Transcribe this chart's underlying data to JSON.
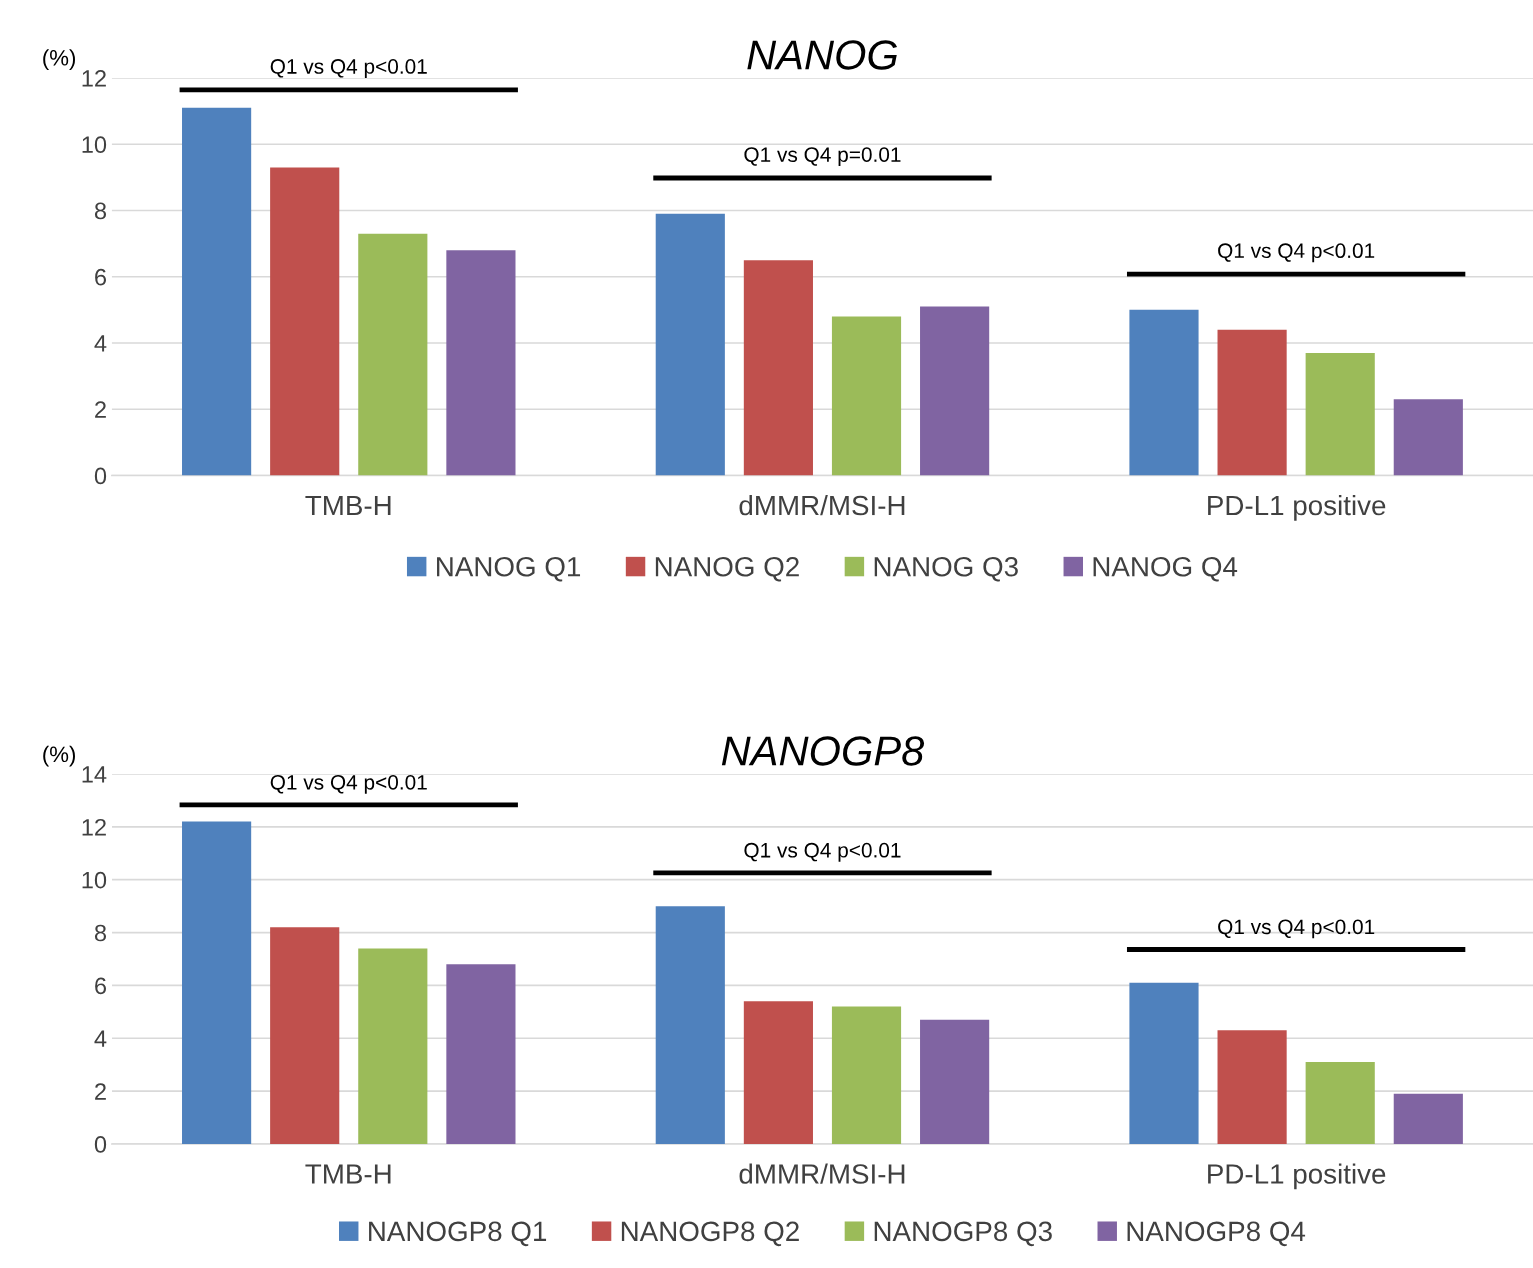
{
  "chart_data": [
    {
      "type": "bar",
      "title": "NANOG",
      "ylabel": "(%)",
      "categories": [
        "TMB-H",
        "dMMR/MSI-H",
        "PD-L1 positive"
      ],
      "series": [
        {
          "name": "NANOG Q1",
          "color": "#4f81bd",
          "values": [
            11.1,
            7.9,
            5.0
          ]
        },
        {
          "name": "NANOG Q2",
          "color": "#c0504d",
          "values": [
            9.3,
            6.5,
            4.4
          ]
        },
        {
          "name": "NANOG Q3",
          "color": "#9bbb59",
          "values": [
            7.3,
            4.8,
            3.7
          ]
        },
        {
          "name": "NANOG Q4",
          "color": "#8064a2",
          "values": [
            6.8,
            5.1,
            2.3
          ]
        }
      ],
      "ylim": [
        0,
        12
      ],
      "yticks": [
        0,
        2,
        4,
        6,
        8,
        10,
        12
      ],
      "grid": "y",
      "legend": "bottom",
      "annotations": [
        "Q1 vs Q4 p<0.01",
        "Q1 vs Q4 p=0.01",
        "Q1 vs Q4 p<0.01"
      ]
    },
    {
      "type": "bar",
      "title": "NANOGP8",
      "ylabel": "(%)",
      "categories": [
        "TMB-H",
        "dMMR/MSI-H",
        "PD-L1 positive"
      ],
      "series": [
        {
          "name": "NANOGP8 Q1",
          "color": "#4f81bd",
          "values": [
            12.2,
            9.0,
            6.1
          ]
        },
        {
          "name": "NANOGP8 Q2",
          "color": "#c0504d",
          "values": [
            8.2,
            5.4,
            4.3
          ]
        },
        {
          "name": "NANOGP8 Q3",
          "color": "#9bbb59",
          "values": [
            7.4,
            5.2,
            3.1
          ]
        },
        {
          "name": "NANOGP8 Q4",
          "color": "#8064a2",
          "values": [
            6.8,
            4.7,
            1.9
          ]
        }
      ],
      "ylim": [
        0,
        14
      ],
      "yticks": [
        0,
        2,
        4,
        6,
        8,
        10,
        12,
        14
      ],
      "grid": "y",
      "legend": "bottom",
      "annotations": [
        "Q1 vs Q4 p<0.01",
        "Q1 vs Q4 p<0.01",
        "Q1 vs Q4 p<0.01"
      ]
    }
  ]
}
